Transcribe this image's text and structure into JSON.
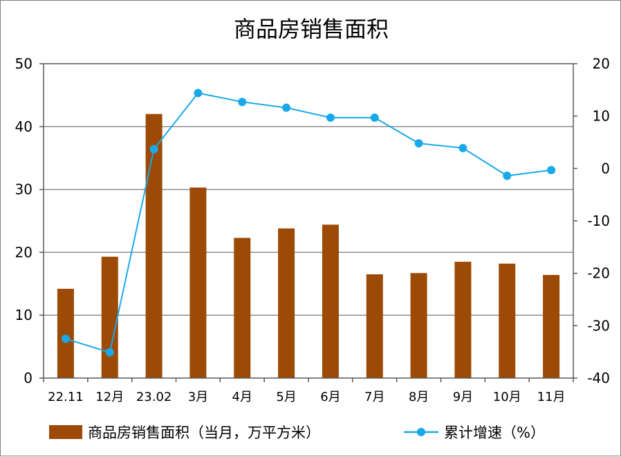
{
  "chart_data": {
    "type": "bar+line",
    "title": "商品房销售面积",
    "categories": [
      "22.11",
      "12月",
      "23.02",
      "3月",
      "4月",
      "5月",
      "6月",
      "7月",
      "8月",
      "9月",
      "10月",
      "11月"
    ],
    "series": [
      {
        "name": "商品房销售面积（当月，万平方米）",
        "type": "bar",
        "axis": "left",
        "color": "#9c4a06",
        "values": [
          14.2,
          19.3,
          42.0,
          30.3,
          22.3,
          23.8,
          24.4,
          16.5,
          16.7,
          18.5,
          18.2,
          16.4
        ]
      },
      {
        "name": "累计增速（%）",
        "type": "line",
        "axis": "right",
        "color": "#19a9e8",
        "values": [
          -32.5,
          -35.1,
          3.7,
          14.4,
          12.7,
          11.6,
          9.7,
          9.7,
          4.8,
          3.9,
          -1.4,
          -0.3
        ]
      }
    ],
    "y_left": {
      "min": 0,
      "max": 50,
      "ticks": [
        0,
        10,
        20,
        30,
        40,
        50
      ]
    },
    "y_right": {
      "min": -40,
      "max": 20,
      "ticks": [
        -40,
        -30,
        -20,
        -10,
        0,
        10,
        20
      ]
    },
    "grid": true,
    "legend_position": "bottom"
  }
}
